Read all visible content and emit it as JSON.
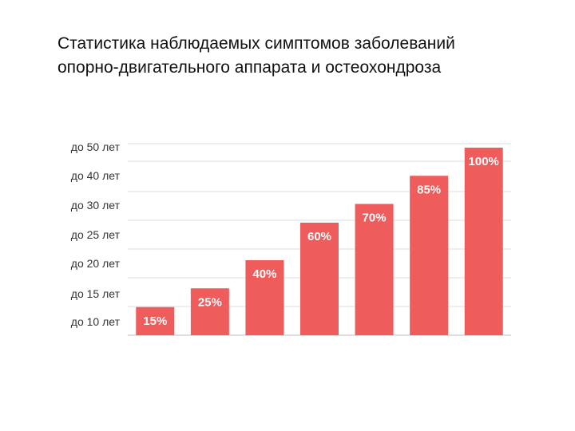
{
  "title_lines": [
    "Статистика наблюдаемых симптомов заболеваний",
    "опорно-двигательного аппарата и остеохондроза"
  ],
  "chart_data": {
    "type": "bar",
    "title": "Статистика наблюдаемых симптомов заболеваний опорно-двигательного аппарата и остеохондроза",
    "xlabel": "",
    "ylabel": "",
    "y_categories": [
      "до 10 лет",
      "до 15 лет",
      "до 20 лет",
      "до 25 лет",
      "до 30 лет",
      "до 40 лет",
      "до 50 лет"
    ],
    "values": [
      15,
      25,
      40,
      60,
      70,
      85,
      100
    ],
    "value_labels": [
      "15%",
      "25%",
      "40%",
      "60%",
      "70%",
      "85%",
      "100%"
    ],
    "ylim": [
      0,
      100
    ],
    "grid": true,
    "legend": "none",
    "bar_color": "#ee5c5c"
  }
}
